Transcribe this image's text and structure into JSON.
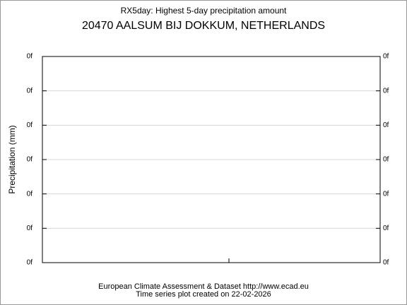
{
  "chart_data": {
    "type": "line",
    "title": "RX5day: Highest 5-day precipitation amount",
    "subtitle": "20470 AALSUM BIJ DOKKUM, NETHERLANDS",
    "y_label": "Precipitation (mm)",
    "footer": [
      "European Climate Assessment & Dataset  http://www.ecad.eu",
      "Time series plot created on 22-02-2026"
    ],
    "ylim": [
      0,
      6
    ],
    "yticks": [
      {
        "value": 0,
        "label": "0f"
      },
      {
        "value": 1,
        "label": "0f"
      },
      {
        "value": 2,
        "label": "0f"
      },
      {
        "value": 3,
        "label": "0f"
      },
      {
        "value": 4,
        "label": "0f"
      },
      {
        "value": 5,
        "label": "0f"
      },
      {
        "value": 6,
        "label": "0f"
      }
    ],
    "grid": true
  }
}
